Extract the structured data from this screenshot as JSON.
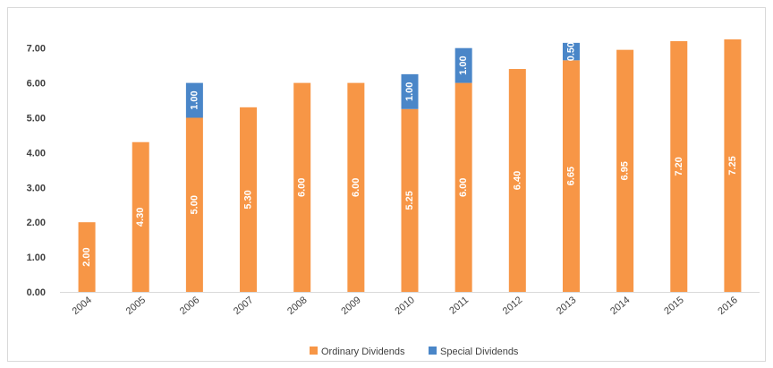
{
  "chart_data": {
    "type": "bar",
    "stacked": true,
    "categories": [
      "2004",
      "2005",
      "2006",
      "2007",
      "2008",
      "2009",
      "2010",
      "2011",
      "2012",
      "2013",
      "2014",
      "2015",
      "2016"
    ],
    "series": [
      {
        "name": "Ordinary Dividends",
        "color": "#f79646",
        "values": [
          2.0,
          4.3,
          5.0,
          5.3,
          6.0,
          6.0,
          5.25,
          6.0,
          6.4,
          6.65,
          6.95,
          7.2,
          7.25
        ],
        "labels": [
          "2.00",
          "4.30",
          "5.00",
          "5.30",
          "6.00",
          "6.00",
          "5.25",
          "6.00",
          "6.40",
          "6.65",
          "6.95",
          "7.20",
          "7.25"
        ]
      },
      {
        "name": "Special Dividends",
        "color": "#4a86c8",
        "values": [
          0,
          0,
          1.0,
          0,
          0,
          0,
          1.0,
          1.0,
          0,
          0.5,
          0,
          0,
          0
        ],
        "labels": [
          "",
          "",
          "1.00",
          "",
          "",
          "",
          "1.00",
          "1.00",
          "",
          "0.50",
          "",
          "",
          ""
        ]
      }
    ],
    "yticks": [
      "0.00",
      "1.00",
      "2.00",
      "3.00",
      "4.00",
      "5.00",
      "6.00",
      "7.00"
    ],
    "ylim": [
      0,
      7.5
    ],
    "grid": false,
    "legend": "bottom"
  }
}
